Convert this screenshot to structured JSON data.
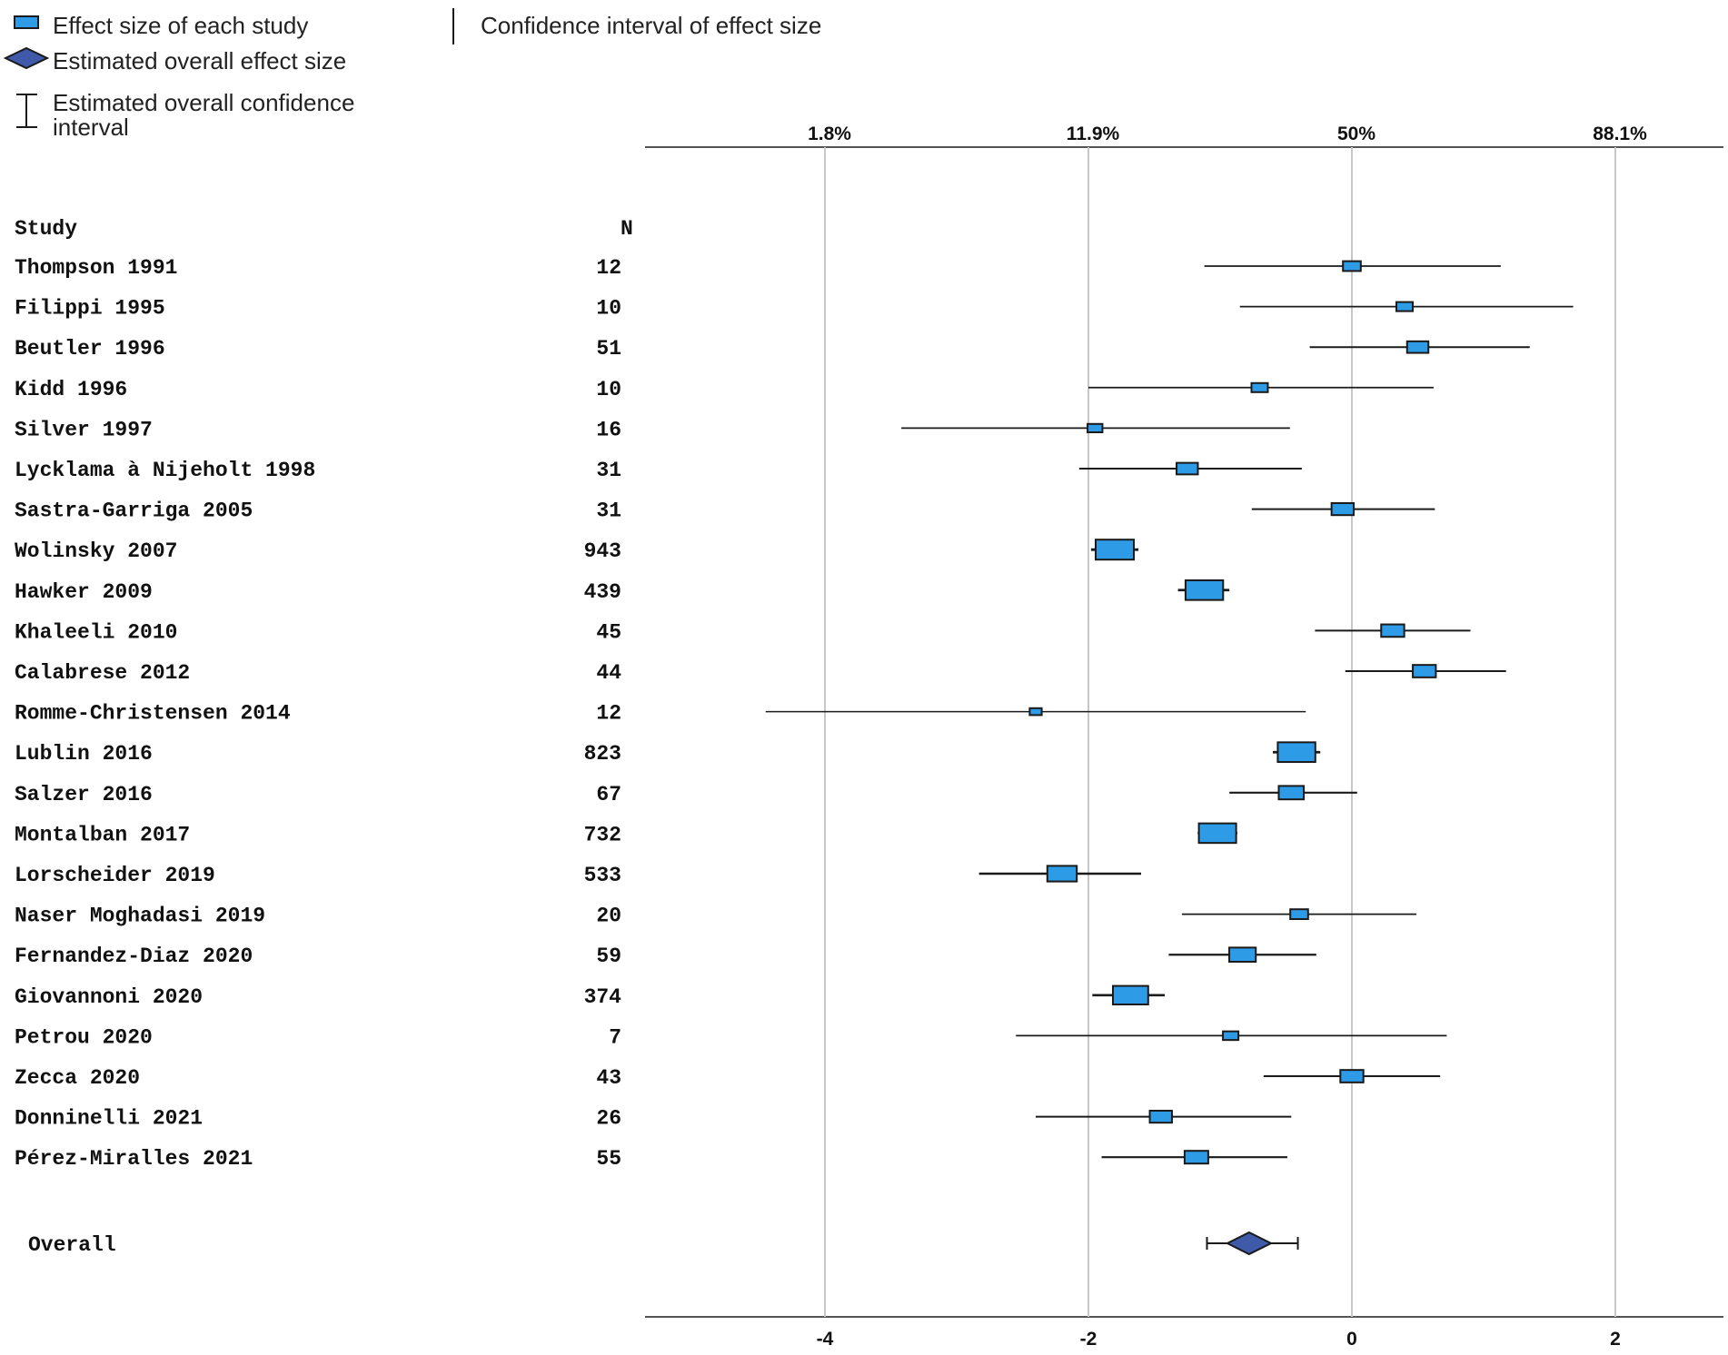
{
  "legend": {
    "effect_size": "Effect size of each study",
    "confidence_interval": "Confidence interval of effect size",
    "overall_effect": "Estimated overall effect size",
    "overall_ci_line1": "Estimated overall confidence",
    "overall_ci_line2": "interval"
  },
  "columns": {
    "study": "Study",
    "n": "N"
  },
  "colors": {
    "study_box": "#2e9be6",
    "overall_diamond": "#3f5aa8",
    "grid": "#c8c8c8",
    "axis": "#555555"
  },
  "chart_data": {
    "type": "forest",
    "x_axis": {
      "range": [
        -5.1,
        2.8
      ],
      "ticks": [
        -4,
        -2,
        0,
        2
      ],
      "tick_labels": [
        "-4",
        "-2",
        "0",
        "2"
      ]
    },
    "top_axis": {
      "ticks": [
        -4,
        -2,
        0,
        2
      ],
      "tick_labels": [
        "1.8%",
        "11.9%",
        "50%",
        "88.1%"
      ]
    },
    "grid": true,
    "studies": [
      {
        "name": "Thompson 1991",
        "n": "12",
        "effect": 0.0,
        "ci": [
          -1.12,
          1.13
        ],
        "weight": 0.3
      },
      {
        "name": "Filippi 1995",
        "n": "10",
        "effect": 0.4,
        "ci": [
          -0.85,
          1.68
        ],
        "weight": 0.25
      },
      {
        "name": "Beutler 1996",
        "n": "51",
        "effect": 0.5,
        "ci": [
          -0.32,
          1.35
        ],
        "weight": 0.42
      },
      {
        "name": "Kidd 1996",
        "n": "10",
        "effect": -0.7,
        "ci": [
          -2.0,
          0.62
        ],
        "weight": 0.25
      },
      {
        "name": "Silver 1997",
        "n": "16",
        "effect": -1.95,
        "ci": [
          -3.42,
          -0.47
        ],
        "weight": 0.2
      },
      {
        "name": "Lycklama à Nijeholt 1998",
        "n": "31",
        "effect": -1.25,
        "ci": [
          -2.07,
          -0.38
        ],
        "weight": 0.42
      },
      {
        "name": "Sastra-Garriga 2005",
        "n": "31",
        "effect": -0.07,
        "ci": [
          -0.76,
          0.63
        ],
        "weight": 0.45
      },
      {
        "name": "Wolinsky 2007",
        "n": "943",
        "effect": -1.8,
        "ci": [
          -1.98,
          -1.62
        ],
        "weight": 1.0
      },
      {
        "name": "Hawker 2009",
        "n": "439",
        "effect": -1.12,
        "ci": [
          -1.32,
          -0.93
        ],
        "weight": 0.98
      },
      {
        "name": "Khaleeli 2010",
        "n": "45",
        "effect": 0.31,
        "ci": [
          -0.28,
          0.9
        ],
        "weight": 0.48
      },
      {
        "name": "Calabrese 2012",
        "n": "44",
        "effect": 0.55,
        "ci": [
          -0.05,
          1.17
        ],
        "weight": 0.48
      },
      {
        "name": "Romme-Christensen 2014",
        "n": "12",
        "effect": -2.4,
        "ci": [
          -4.45,
          -0.35
        ],
        "weight": 0.1
      },
      {
        "name": "Lublin 2016",
        "n": "823",
        "effect": -0.42,
        "ci": [
          -0.6,
          -0.24
        ],
        "weight": 0.98
      },
      {
        "name": "Salzer 2016",
        "n": "67",
        "effect": -0.46,
        "ci": [
          -0.93,
          0.04
        ],
        "weight": 0.55
      },
      {
        "name": "Montalban 2017",
        "n": "732",
        "effect": -1.02,
        "ci": [
          -1.17,
          -0.87
        ],
        "weight": 0.97
      },
      {
        "name": "Lorscheider 2019",
        "n": "533",
        "effect": -2.2,
        "ci": [
          -2.83,
          -1.6
        ],
        "weight": 0.7
      },
      {
        "name": "Naser Moghadasi 2019",
        "n": "20",
        "effect": -0.4,
        "ci": [
          -1.29,
          0.49
        ],
        "weight": 0.3
      },
      {
        "name": "Fernandez-Diaz 2020",
        "n": "59",
        "effect": -0.83,
        "ci": [
          -1.39,
          -0.27
        ],
        "weight": 0.6
      },
      {
        "name": "Giovannoni 2020",
        "n": "374",
        "effect": -1.68,
        "ci": [
          -1.97,
          -1.42
        ],
        "weight": 0.9
      },
      {
        "name": "Petrou 2020",
        "n": "7",
        "effect": -0.92,
        "ci": [
          -2.55,
          0.72
        ],
        "weight": 0.22
      },
      {
        "name": "Zecca 2020",
        "n": "43",
        "effect": 0.0,
        "ci": [
          -0.67,
          0.67
        ],
        "weight": 0.48
      },
      {
        "name": "Donninelli 2021",
        "n": "26",
        "effect": -1.45,
        "ci": [
          -2.4,
          -0.46
        ],
        "weight": 0.45
      },
      {
        "name": "Pérez-Miralles 2021",
        "n": "55",
        "effect": -1.18,
        "ci": [
          -1.9,
          -0.49
        ],
        "weight": 0.5
      }
    ],
    "overall": {
      "label": "Overall",
      "effect": -0.78,
      "ci": [
        -1.1,
        -0.41
      ]
    }
  }
}
